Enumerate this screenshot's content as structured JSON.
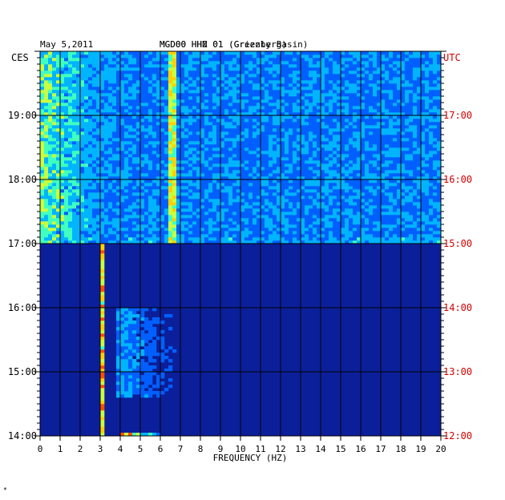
{
  "header": {
    "date": "May 5,2011",
    "station": "MGD00 HHN 01 (Grizzly Basin)",
    "station_overlay": "MGD00 HHZ 01 (Greenberg)",
    "left_zone": "CES",
    "right_zone": "UTC"
  },
  "colors": {
    "background": "#ffffff",
    "plot_background": "#0b1f9a",
    "grid": "#000000",
    "left_labels": "#000000",
    "right_labels": "#d40000",
    "colormap": [
      "#000a80",
      "#0020c8",
      "#0060ff",
      "#00b4ff",
      "#40ffc0",
      "#c8ff40",
      "#ffd000",
      "#ff5000",
      "#d00000"
    ]
  },
  "chart_data": {
    "type": "heatmap",
    "title": "May 5,2011",
    "xlabel": "FREQUENCY (HZ)",
    "ylabel_left": "CES",
    "ylabel_right": "UTC",
    "xlim": [
      0,
      20
    ],
    "x_ticks": [
      0,
      1,
      2,
      3,
      4,
      5,
      6,
      7,
      8,
      9,
      10,
      11,
      12,
      13,
      14,
      15,
      16,
      17,
      18,
      19,
      20
    ],
    "time_range_local_hours": [
      14,
      20
    ],
    "y_ticks_left": [
      "14:00",
      "15:00",
      "16:00",
      "17:00",
      "18:00",
      "19:00"
    ],
    "y_ticks_right": [
      "12:00",
      "13:00",
      "14:00",
      "15:00",
      "16:00",
      "17:00"
    ],
    "grid": true,
    "features": [
      {
        "desc": "broadband energy",
        "freq_range": [
          0,
          4
        ],
        "time_range": [
          17.0,
          20.0
        ],
        "intensity": 0.7
      },
      {
        "desc": "persistent line",
        "freq": 6.6,
        "time_range": [
          17.0,
          20.0
        ],
        "intensity": 0.8
      },
      {
        "desc": "thin line",
        "freq": 3.1,
        "time_range": [
          14.0,
          17.0
        ],
        "intensity": 0.9
      },
      {
        "desc": "moderate patch",
        "freq_range": [
          3.8,
          7
        ],
        "time_range": [
          14.6,
          16.0
        ],
        "intensity": 0.45
      },
      {
        "desc": "horizontal band",
        "freq_range": [
          0,
          20
        ],
        "time": 17.05,
        "intensity": 0.45
      },
      {
        "desc": "brief event",
        "freq_range": [
          4,
          6
        ],
        "time": 14.02,
        "intensity": 1.0
      }
    ]
  }
}
